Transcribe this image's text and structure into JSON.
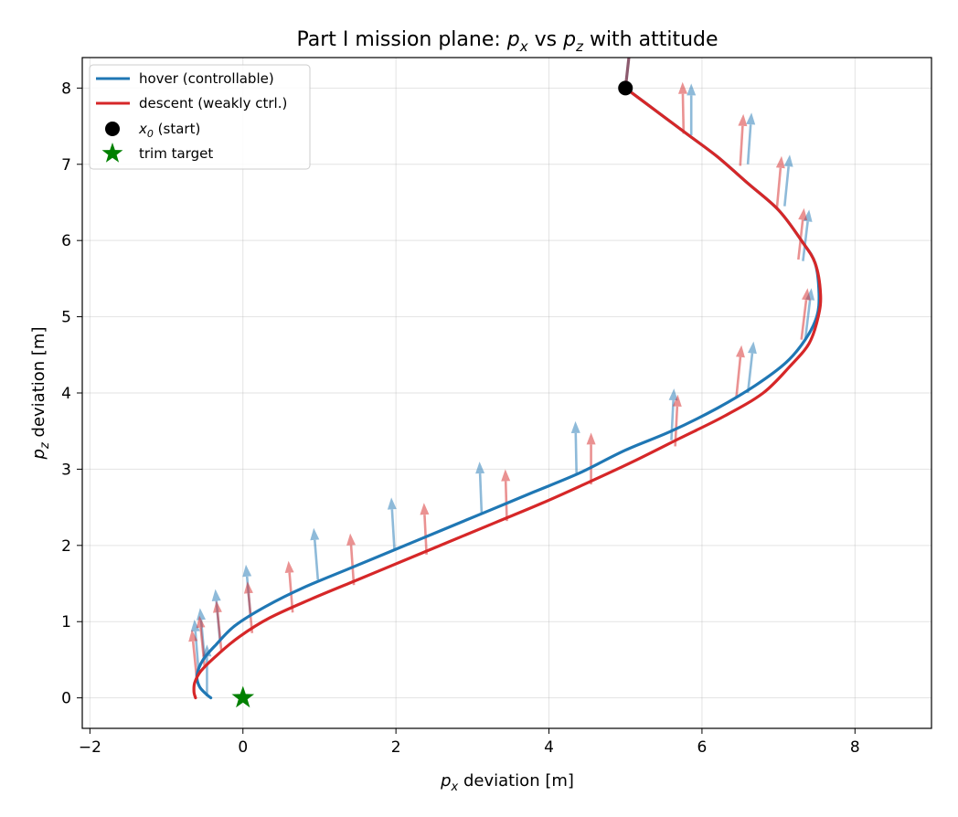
{
  "chart_data": {
    "type": "line",
    "title": "Part I mission plane: p_x vs p_z with attitude",
    "title_parts": {
      "prefix": "Part I mission plane: ",
      "var1": "p",
      "sub1": "x",
      "mid": " vs ",
      "var2": "p",
      "sub2": "z",
      "suffix": " with attitude"
    },
    "xlabel": "p_x deviation [m]",
    "xlabel_parts": {
      "var": "p",
      "sub": "x",
      "rest": " deviation [m]"
    },
    "ylabel": "p_z deviation [m]",
    "ylabel_parts": {
      "var": "p",
      "sub": "z",
      "rest": " deviation [m]"
    },
    "xlim": [
      -2.1,
      9.0
    ],
    "ylim": [
      -0.4,
      8.4
    ],
    "xticks": [
      -2,
      0,
      2,
      4,
      6,
      8
    ],
    "yticks": [
      0,
      1,
      2,
      3,
      4,
      5,
      6,
      7,
      8
    ],
    "grid": true,
    "legend_position": "upper-left",
    "legend": [
      {
        "label": "hover (controllable)",
        "kind": "line",
        "color": "#1f77b4"
      },
      {
        "label": "descent (weakly ctrl.)",
        "kind": "line",
        "color": "#d62728"
      },
      {
        "label": "x_0 (start)",
        "var": "x",
        "sub": "0",
        "rest": " (start)",
        "kind": "dot",
        "color": "#000000"
      },
      {
        "label": "trim target",
        "kind": "star",
        "color": "#008000"
      }
    ],
    "series": [
      {
        "name": "hover (controllable)",
        "color": "#1f77b4",
        "x": [
          5.0,
          5.4,
          5.8,
          6.2,
          6.6,
          7.0,
          7.3,
          7.48,
          7.53,
          7.5,
          7.35,
          7.1,
          6.7,
          6.2,
          5.6,
          5.0,
          4.4,
          3.8,
          3.2,
          2.6,
          2.0,
          1.4,
          0.8,
          0.3,
          -0.1,
          -0.35,
          -0.52,
          -0.6,
          -0.57,
          -0.48,
          -0.42
        ],
        "y": [
          8.0,
          7.7,
          7.4,
          7.1,
          6.75,
          6.4,
          6.0,
          5.7,
          5.3,
          5.0,
          4.7,
          4.4,
          4.1,
          3.8,
          3.5,
          3.25,
          2.95,
          2.7,
          2.45,
          2.2,
          1.95,
          1.7,
          1.45,
          1.2,
          0.95,
          0.7,
          0.5,
          0.3,
          0.15,
          0.05,
          0.0
        ]
      },
      {
        "name": "descent (weakly ctrl.)",
        "color": "#d62728",
        "x": [
          5.0,
          5.4,
          5.8,
          6.2,
          6.6,
          7.0,
          7.3,
          7.48,
          7.55,
          7.52,
          7.4,
          7.15,
          6.8,
          6.3,
          5.7,
          5.1,
          4.5,
          3.9,
          3.3,
          2.7,
          2.1,
          1.5,
          0.9,
          0.35,
          -0.05,
          -0.35,
          -0.55,
          -0.63,
          -0.64,
          -0.62
        ],
        "y": [
          8.0,
          7.7,
          7.4,
          7.1,
          6.75,
          6.4,
          6.0,
          5.7,
          5.3,
          5.0,
          4.65,
          4.35,
          4.0,
          3.7,
          3.4,
          3.1,
          2.82,
          2.55,
          2.3,
          2.05,
          1.8,
          1.55,
          1.3,
          1.05,
          0.8,
          0.55,
          0.35,
          0.2,
          0.08,
          0.0
        ]
      }
    ],
    "attitude_arrows": {
      "hover": [
        [
          5.86,
          7.38,
          0.0
        ],
        [
          6.6,
          7.0,
          0.07
        ],
        [
          7.08,
          6.45,
          0.1
        ],
        [
          7.32,
          5.73,
          0.12
        ],
        [
          7.35,
          4.7,
          0.12
        ],
        [
          6.6,
          4.0,
          0.11
        ],
        [
          5.6,
          3.38,
          0.05
        ],
        [
          4.36,
          2.95,
          -0.02
        ],
        [
          3.12,
          2.42,
          -0.04
        ],
        [
          1.98,
          1.95,
          -0.06
        ],
        [
          0.98,
          1.55,
          -0.08
        ],
        [
          0.1,
          1.07,
          -0.09
        ],
        [
          -0.3,
          0.75,
          -0.09
        ],
        [
          -0.5,
          0.5,
          -0.09
        ],
        [
          -0.58,
          0.35,
          -0.08
        ],
        [
          -0.47,
          0.02,
          0.0
        ]
      ],
      "descent": [
        [
          5.76,
          7.4,
          -0.02
        ],
        [
          6.5,
          6.98,
          0.06
        ],
        [
          6.98,
          6.43,
          0.09
        ],
        [
          7.26,
          5.75,
          0.11
        ],
        [
          7.3,
          4.7,
          0.12
        ],
        [
          6.45,
          3.95,
          0.1
        ],
        [
          5.65,
          3.3,
          0.05
        ],
        [
          4.55,
          2.8,
          0.0
        ],
        [
          3.45,
          2.32,
          -0.03
        ],
        [
          2.4,
          1.88,
          -0.05
        ],
        [
          1.45,
          1.48,
          -0.07
        ],
        [
          0.65,
          1.12,
          -0.08
        ],
        [
          0.12,
          0.85,
          -0.09
        ],
        [
          -0.28,
          0.6,
          -0.1
        ],
        [
          -0.5,
          0.4,
          -0.1
        ],
        [
          -0.6,
          0.22,
          -0.1
        ]
      ],
      "length": 0.68
    },
    "start_point": {
      "x": 5.0,
      "y": 8.0
    },
    "trim_target": {
      "x": 0.0,
      "y": 0.0
    },
    "start_stub": {
      "x": [
        5.0,
        5.05
      ],
      "y": [
        8.0,
        8.45
      ],
      "color": "#8c5a6e"
    }
  }
}
